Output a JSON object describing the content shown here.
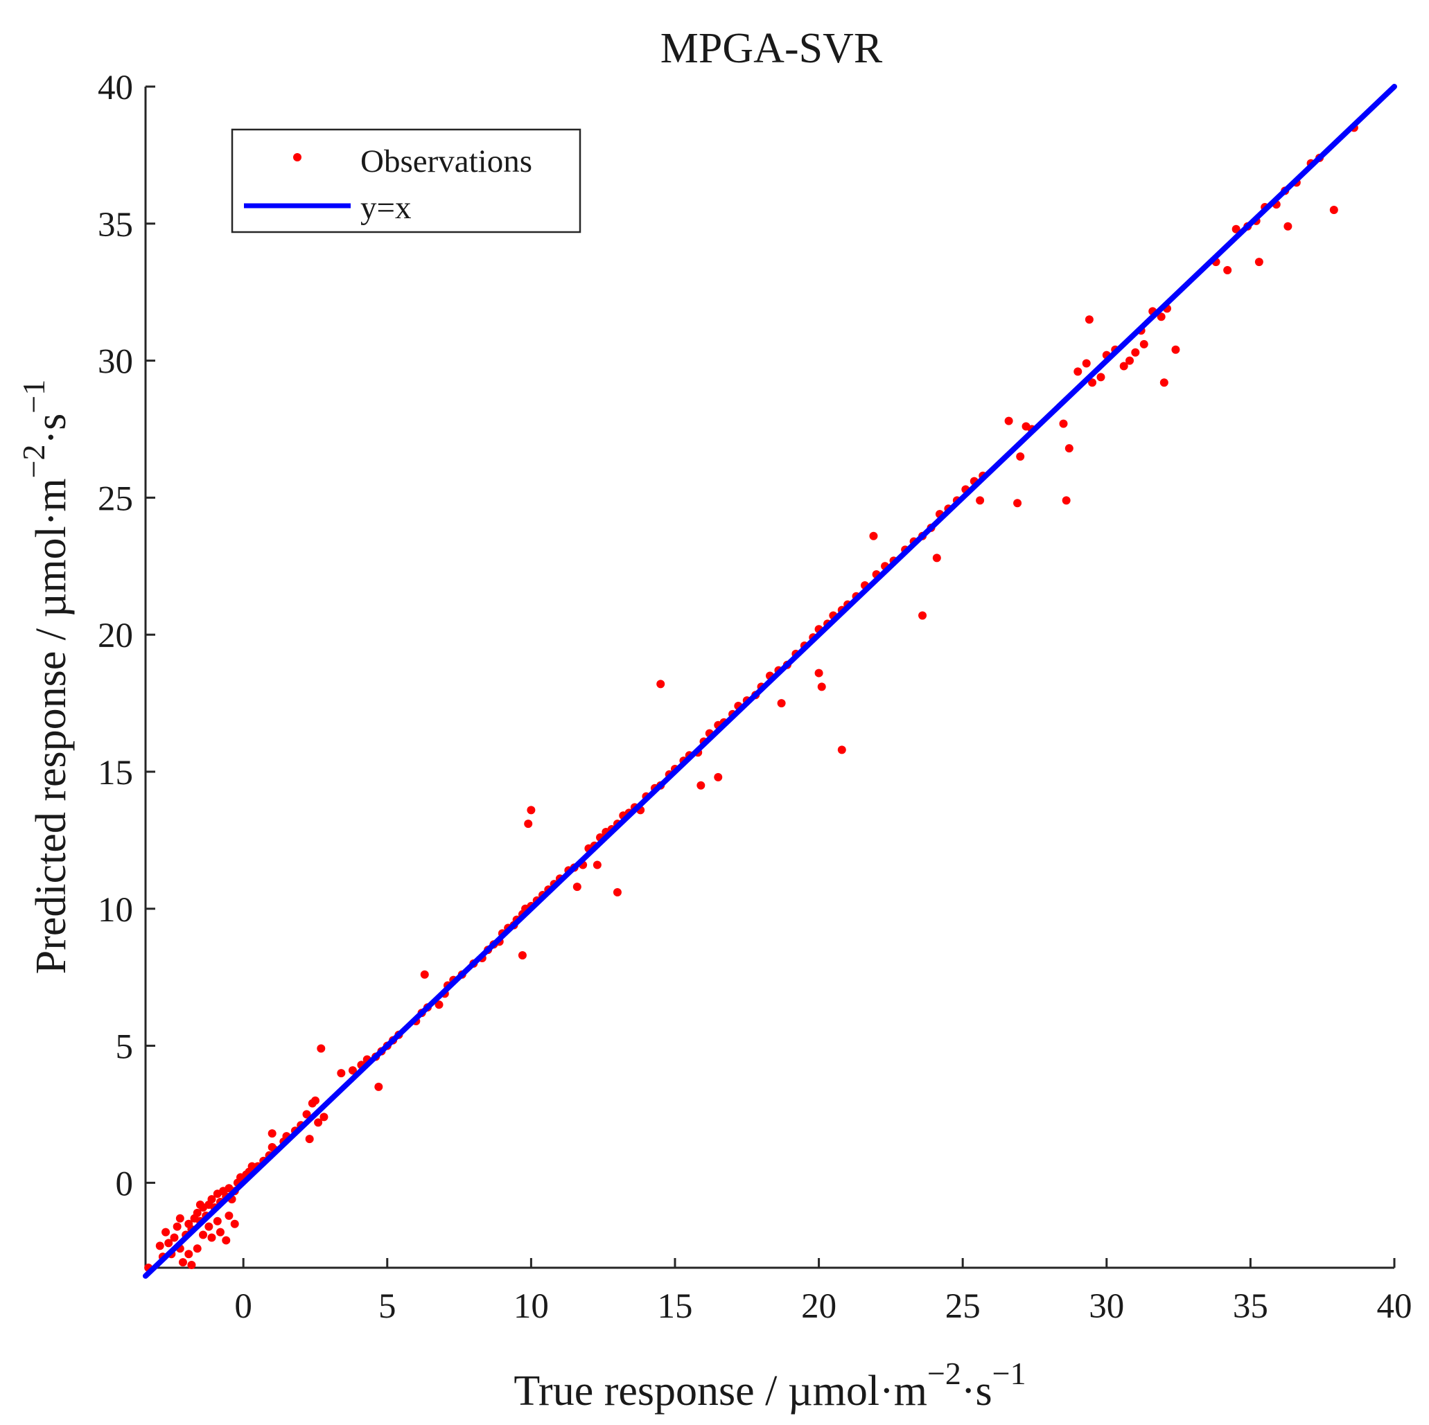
{
  "chart_data": {
    "type": "scatter",
    "title": "MPGA-SVR",
    "xlabel": "True response / µmol·m",
    "xlabel_sup1": "−2",
    "xlabel_mid": "·s",
    "xlabel_sup2": "−1",
    "ylabel": "Predicted response / µmol·m",
    "ylabel_sup1": "−2",
    "ylabel_mid": "·s",
    "ylabel_sup2": "−1",
    "xlim": [
      -3.4,
      40
    ],
    "ylim": [
      -3.1,
      40
    ],
    "xticks": [
      0,
      5,
      10,
      15,
      20,
      25,
      30,
      35,
      40
    ],
    "yticks": [
      0,
      5,
      10,
      15,
      20,
      25,
      30,
      35,
      40
    ],
    "grid": false,
    "legend_position": "top-left",
    "series": [
      {
        "name": "Observations",
        "kind": "points",
        "color": "#ff0000",
        "x": [
          -3.3,
          -2.9,
          -2.7,
          -2.6,
          -2.4,
          -2.3,
          -2.2,
          -2.0,
          -1.9,
          -1.8,
          -1.7,
          -1.6,
          -1.5,
          -1.4,
          -1.3,
          -1.2,
          -1.1,
          -1.0,
          -0.9,
          -0.8,
          -0.7,
          -0.6,
          -0.5,
          -0.4,
          -0.3,
          -0.2,
          -0.1,
          0.1,
          0.2,
          0.3,
          -2.8,
          -2.5,
          -2.1,
          -1.9,
          -1.6,
          -1.4,
          -1.2,
          -0.9,
          -0.6,
          -0.3,
          -1.8,
          -1.1,
          -0.8,
          -0.5,
          -2.2,
          -1.5,
          0.5,
          0.7,
          0.9,
          1.0,
          1.1,
          1.4,
          1.5,
          1.8,
          2.0,
          2.2,
          2.3,
          2.4,
          2.5,
          2.6,
          2.7,
          2.8,
          3.4,
          3.8,
          4.1,
          4.3,
          4.6,
          4.8,
          5.0,
          5.2,
          5.4,
          6.0,
          6.2,
          6.4,
          6.8,
          7.0,
          7.1,
          7.3,
          7.6,
          8.0,
          8.3,
          8.5,
          8.7,
          8.9,
          9.0,
          9.2,
          9.4,
          9.5,
          9.7,
          9.8,
          10.0,
          10.2,
          10.4,
          10.6,
          10.8,
          11.0,
          11.3,
          11.5,
          11.8,
          12.0,
          12.2,
          12.4,
          12.6,
          12.8,
          13.0,
          13.2,
          13.4,
          13.6,
          13.8,
          14.0,
          14.3,
          14.5,
          14.8,
          15.0,
          15.3,
          15.5,
          15.8,
          16.0,
          16.2,
          16.5,
          16.7,
          17.0,
          17.2,
          17.5,
          17.8,
          18.0,
          18.3,
          18.6,
          18.9,
          19.2,
          19.5,
          19.8,
          20.0,
          20.3,
          20.5,
          20.8,
          21.0,
          21.3,
          21.6,
          22.0,
          22.3,
          22.6,
          23.0,
          23.3,
          23.6,
          23.9,
          24.2,
          24.5,
          24.8,
          25.1,
          25.4,
          25.7,
          26.6,
          26.9,
          27.2,
          27.4,
          28.5,
          28.6,
          29.0,
          29.3,
          29.5,
          29.8,
          30.0,
          30.3,
          30.6,
          30.8,
          31.0,
          31.3,
          31.6,
          31.9,
          32.1,
          32.4,
          33.8,
          34.2,
          34.5,
          34.9,
          35.2,
          35.5,
          35.9,
          36.2,
          36.6,
          37.1,
          37.4,
          37.9,
          38.6,
          9.9,
          10.0,
          14.5,
          20.8,
          23.6,
          21.9,
          27.0,
          28.7,
          20.0,
          13.0,
          12.3,
          16.5,
          18.7,
          20.1,
          25.6,
          31.2,
          35.3,
          1.0,
          4.7,
          6.3,
          9.7,
          11.6,
          15.9,
          24.1,
          29.4,
          32.0,
          36.3
        ],
        "y": [
          -3.1,
          -2.3,
          -1.8,
          -2.2,
          -2.0,
          -1.6,
          -2.4,
          -1.9,
          -1.5,
          -1.7,
          -1.3,
          -1.1,
          -1.4,
          -0.9,
          -1.2,
          -0.8,
          -0.6,
          -0.9,
          -0.4,
          -0.7,
          -0.3,
          -0.5,
          -0.2,
          -0.6,
          -0.3,
          0.0,
          0.2,
          0.3,
          0.4,
          0.6,
          -2.7,
          -2.6,
          -2.9,
          -2.6,
          -2.4,
          -1.9,
          -1.6,
          -1.4,
          -2.1,
          -1.5,
          -3.0,
          -2.0,
          -1.8,
          -1.2,
          -1.3,
          -0.8,
          0.6,
          0.8,
          1.0,
          1.3,
          1.2,
          1.5,
          1.7,
          1.9,
          2.1,
          2.5,
          1.6,
          2.9,
          3.0,
          2.2,
          4.9,
          2.4,
          4.0,
          4.1,
          4.3,
          4.5,
          4.6,
          4.8,
          5.0,
          5.2,
          5.4,
          5.9,
          6.2,
          6.4,
          6.5,
          6.9,
          7.2,
          7.4,
          7.6,
          8.0,
          8.2,
          8.5,
          8.7,
          8.8,
          9.1,
          9.3,
          9.4,
          9.6,
          9.8,
          10.0,
          10.1,
          10.3,
          10.5,
          10.7,
          10.9,
          11.1,
          11.4,
          11.5,
          11.6,
          12.2,
          12.3,
          12.6,
          12.8,
          12.9,
          13.1,
          13.4,
          13.5,
          13.7,
          13.6,
          14.1,
          14.4,
          14.5,
          14.9,
          15.1,
          15.4,
          15.6,
          15.7,
          16.1,
          16.4,
          16.7,
          16.8,
          17.1,
          17.4,
          17.6,
          17.8,
          18.1,
          18.5,
          18.7,
          18.9,
          19.3,
          19.6,
          19.9,
          20.2,
          20.4,
          20.7,
          20.9,
          21.1,
          21.4,
          21.8,
          22.2,
          22.5,
          22.7,
          23.1,
          23.4,
          23.6,
          23.9,
          24.4,
          24.6,
          24.9,
          25.3,
          25.6,
          25.8,
          27.8,
          24.8,
          27.6,
          27.5,
          27.7,
          24.9,
          29.6,
          29.9,
          29.2,
          29.4,
          30.2,
          30.4,
          29.8,
          30.0,
          30.3,
          30.6,
          31.8,
          31.6,
          31.9,
          30.4,
          33.6,
          33.3,
          34.8,
          34.9,
          35.1,
          35.6,
          35.7,
          36.2,
          36.5,
          37.2,
          37.4,
          35.5,
          38.5,
          13.1,
          13.6,
          18.2,
          15.8,
          20.7,
          23.6,
          26.5,
          26.8,
          18.6,
          10.6,
          11.6,
          14.8,
          17.5,
          18.1,
          24.9,
          31.1,
          33.6,
          1.8,
          3.5,
          7.6,
          8.3,
          10.8,
          14.5,
          22.8,
          31.5,
          29.2,
          34.9
        ]
      },
      {
        "name": "y=x",
        "kind": "line",
        "color": "#0000ff",
        "x": [
          -3.4,
          40
        ],
        "y": [
          -3.4,
          40
        ]
      }
    ]
  }
}
